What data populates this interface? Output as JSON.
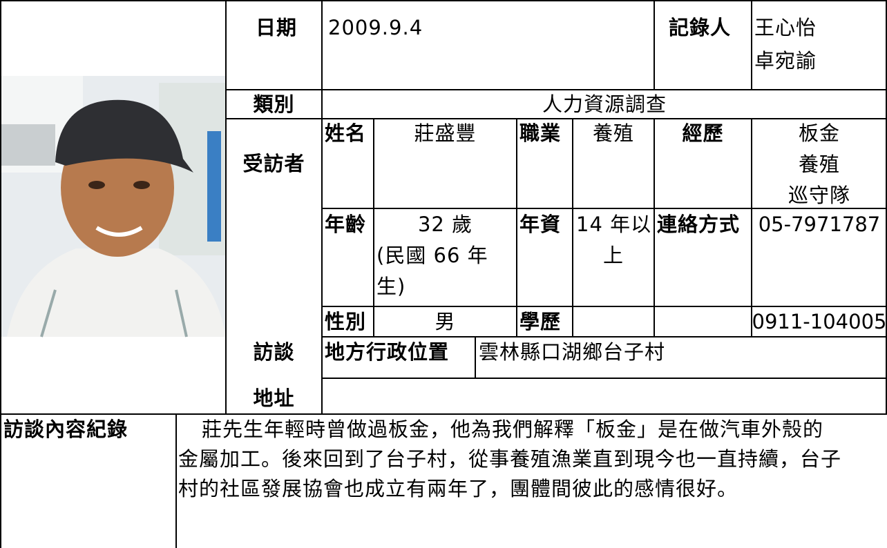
{
  "record": {
    "date_label": "日期",
    "date": "2009.9.4",
    "recorder_label": "記錄人",
    "recorders": [
      "王心怡",
      "卓宛諭"
    ],
    "category_label": "類別",
    "category": "人力資源調查",
    "interviewee_label": "受訪者",
    "name_label": "姓名",
    "name": "莊盛豐",
    "job_label": "職業",
    "job": "養殖",
    "experience_label": "經歷",
    "experience": [
      "板金",
      "養殖",
      "巡守隊"
    ],
    "age_label": "年齡",
    "age": [
      "32 歲",
      "(民國 66 年",
      "生)"
    ],
    "seniority_label": "年資",
    "seniority": [
      "14 年以",
      "上"
    ],
    "contact_label": "連絡方式",
    "phones": [
      "05-7971787",
      "0911-104005"
    ],
    "gender_label": "性別",
    "gender": "男",
    "education_label": "學歷",
    "address_label": [
      "訪談",
      "地址"
    ],
    "admin_label": "地方行政位置",
    "admin_location": "雲林縣口湖鄉台子村",
    "content_label": "訪談內容紀錄",
    "content": [
      "莊先生年輕時曾做過板金，他為我們解釋「板金」是在做汽車外殼的",
      "金屬加工。後來回到了台子村，從事養殖漁業直到現今也一直持續，台子",
      "村的社區發展協會也成立有兩年了，團體間彼此的感情很好。"
    ]
  }
}
